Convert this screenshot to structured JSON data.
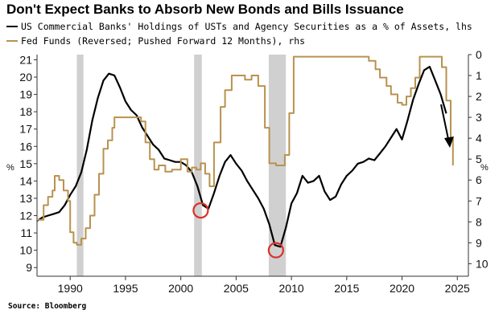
{
  "title": "Don't Expect Banks to Absorb New Bonds and Bills Issuance",
  "source": "Source: Bloomberg",
  "colors": {
    "primary_series": "#000000",
    "secondary_series": "#b8924f",
    "recession_shading": "#d0d0d0",
    "circle_marker": "#d9312b",
    "axis": "#333333"
  },
  "chart_data": {
    "type": "line",
    "title": "Don't Expect Banks to Absorb New Bonds and Bills Issuance",
    "x_range": [
      1987,
      2026
    ],
    "x_ticks": [
      "1990",
      "1995",
      "2000",
      "2005",
      "2010",
      "2015",
      "2020",
      "2025"
    ],
    "y_left": {
      "range": [
        8.5,
        21.3
      ],
      "ticks": [
        "9",
        "10",
        "11",
        "12",
        "13",
        "14",
        "15",
        "16",
        "17",
        "18",
        "19",
        "20",
        "21"
      ],
      "unit": "%"
    },
    "y_right": {
      "range": [
        0,
        10.6
      ],
      "reversed": true,
      "ticks": [
        "0",
        "1",
        "2",
        "3",
        "4",
        "5",
        "6",
        "7",
        "8",
        "9",
        "10"
      ],
      "unit": "%"
    },
    "grid": false,
    "recessions": [
      [
        1990.6,
        1991.2
      ],
      [
        2001.2,
        2001.9
      ],
      [
        2007.95,
        2009.5
      ]
    ],
    "circled_points": [
      {
        "x": 2001.8,
        "y": 12.3
      },
      {
        "x": 2008.6,
        "y": 10.0
      }
    ],
    "series": [
      {
        "name": "US Commercial Banks' Holdings of USTs and Agency Securities as a % of Assets, lhs",
        "axis": "left",
        "color": "#000000",
        "x": [
          1987.0,
          1987.5,
          1988.0,
          1988.5,
          1989.0,
          1989.5,
          1990.0,
          1990.5,
          1991.0,
          1991.5,
          1992.0,
          1992.5,
          1993.0,
          1993.5,
          1994.0,
          1994.5,
          1995.0,
          1995.5,
          1996.0,
          1996.5,
          1997.0,
          1997.5,
          1998.0,
          1998.5,
          1999.0,
          1999.5,
          2000.0,
          2000.5,
          2001.0,
          2001.5,
          2002.0,
          2002.5,
          2003.0,
          2003.5,
          2004.0,
          2004.5,
          2005.0,
          2005.5,
          2006.0,
          2006.5,
          2007.0,
          2007.5,
          2008.0,
          2008.5,
          2009.0,
          2009.5,
          2010.0,
          2010.5,
          2011.0,
          2011.5,
          2012.0,
          2012.5,
          2013.0,
          2013.5,
          2014.0,
          2014.5,
          2015.0,
          2015.5,
          2016.0,
          2016.5,
          2017.0,
          2017.5,
          2018.0,
          2018.5,
          2019.0,
          2019.5,
          2020.0,
          2020.5,
          2021.0,
          2021.5,
          2022.0,
          2022.5,
          2023.0,
          2023.5,
          2024.0
        ],
        "values": [
          11.7,
          11.9,
          12.0,
          12.1,
          12.2,
          12.6,
          13.2,
          13.7,
          14.5,
          15.8,
          17.5,
          18.8,
          19.8,
          20.2,
          20.1,
          19.4,
          18.6,
          18.1,
          17.8,
          17.1,
          16.6,
          16.1,
          15.8,
          15.3,
          15.2,
          15.1,
          15.1,
          14.9,
          14.5,
          13.7,
          12.6,
          12.4,
          13.3,
          14.3,
          15.1,
          15.5,
          15.0,
          14.6,
          14.0,
          13.5,
          13.0,
          12.4,
          11.5,
          10.3,
          10.2,
          11.3,
          12.7,
          13.3,
          14.3,
          13.9,
          14.0,
          14.3,
          13.4,
          12.9,
          13.1,
          13.8,
          14.3,
          14.6,
          15.0,
          15.1,
          15.3,
          15.2,
          15.6,
          16.0,
          16.5,
          17.0,
          16.4,
          17.5,
          18.7,
          19.6,
          20.4,
          20.6,
          19.8,
          19.0,
          17.9
        ],
        "values_precision": "read from chart, approximate"
      },
      {
        "name": "Fed Funds (Reversed; Pushed Forward 12 Months), rhs",
        "axis": "right",
        "color": "#b8924f",
        "x": [
          1987.0,
          1987.6,
          1988.0,
          1988.4,
          1988.6,
          1989.0,
          1989.4,
          1989.8,
          1990.0,
          1990.3,
          1990.6,
          1991.0,
          1991.4,
          1991.8,
          1992.2,
          1992.6,
          1993.0,
          1993.4,
          1993.8,
          1994.0,
          1994.6,
          1995.0,
          1995.6,
          1996.0,
          1996.4,
          1996.8,
          1997.2,
          1997.6,
          1998.0,
          1998.6,
          1999.2,
          1999.6,
          2000.0,
          2000.6,
          2001.0,
          2001.4,
          2001.8,
          2002.2,
          2002.6,
          2003.0,
          2003.6,
          2004.0,
          2004.6,
          2005.2,
          2005.8,
          2006.4,
          2007.0,
          2007.6,
          2008.0,
          2008.6,
          2009.0,
          2009.4,
          2009.8,
          2010.2,
          2010.6,
          2011.0,
          2015.0,
          2016.4,
          2017.0,
          2017.6,
          2018.0,
          2018.6,
          2019.0,
          2019.6,
          2020.0,
          2020.4,
          2020.8,
          2021.2,
          2021.6,
          2022.0,
          2022.6,
          2023.0,
          2023.4,
          2023.6,
          2024.0,
          2024.4,
          2024.6
        ],
        "values": [
          7.9,
          7.2,
          6.8,
          6.5,
          5.8,
          6.0,
          6.5,
          7.0,
          8.5,
          9.0,
          9.1,
          8.8,
          8.3,
          7.7,
          6.7,
          5.7,
          4.5,
          4.1,
          3.5,
          3.0,
          3.0,
          3.0,
          3.0,
          3.0,
          3.2,
          4.2,
          5.0,
          5.5,
          5.3,
          5.6,
          5.5,
          5.5,
          5.0,
          5.6,
          5.4,
          5.5,
          5.2,
          5.7,
          6.3,
          4.2,
          2.5,
          1.7,
          1.0,
          1.0,
          1.2,
          1.0,
          1.5,
          3.5,
          5.2,
          5.3,
          5.3,
          4.8,
          2.8,
          0.1,
          0.1,
          0.1,
          0.1,
          0.1,
          0.3,
          0.7,
          1.1,
          1.5,
          1.9,
          2.3,
          2.4,
          2.0,
          1.6,
          1.1,
          0.1,
          0.1,
          0.1,
          0.1,
          0.1,
          0.6,
          2.2,
          4.0,
          5.3
        ],
        "values_precision": "read from chart, approximate"
      }
    ],
    "legend_placement": "top-left"
  }
}
